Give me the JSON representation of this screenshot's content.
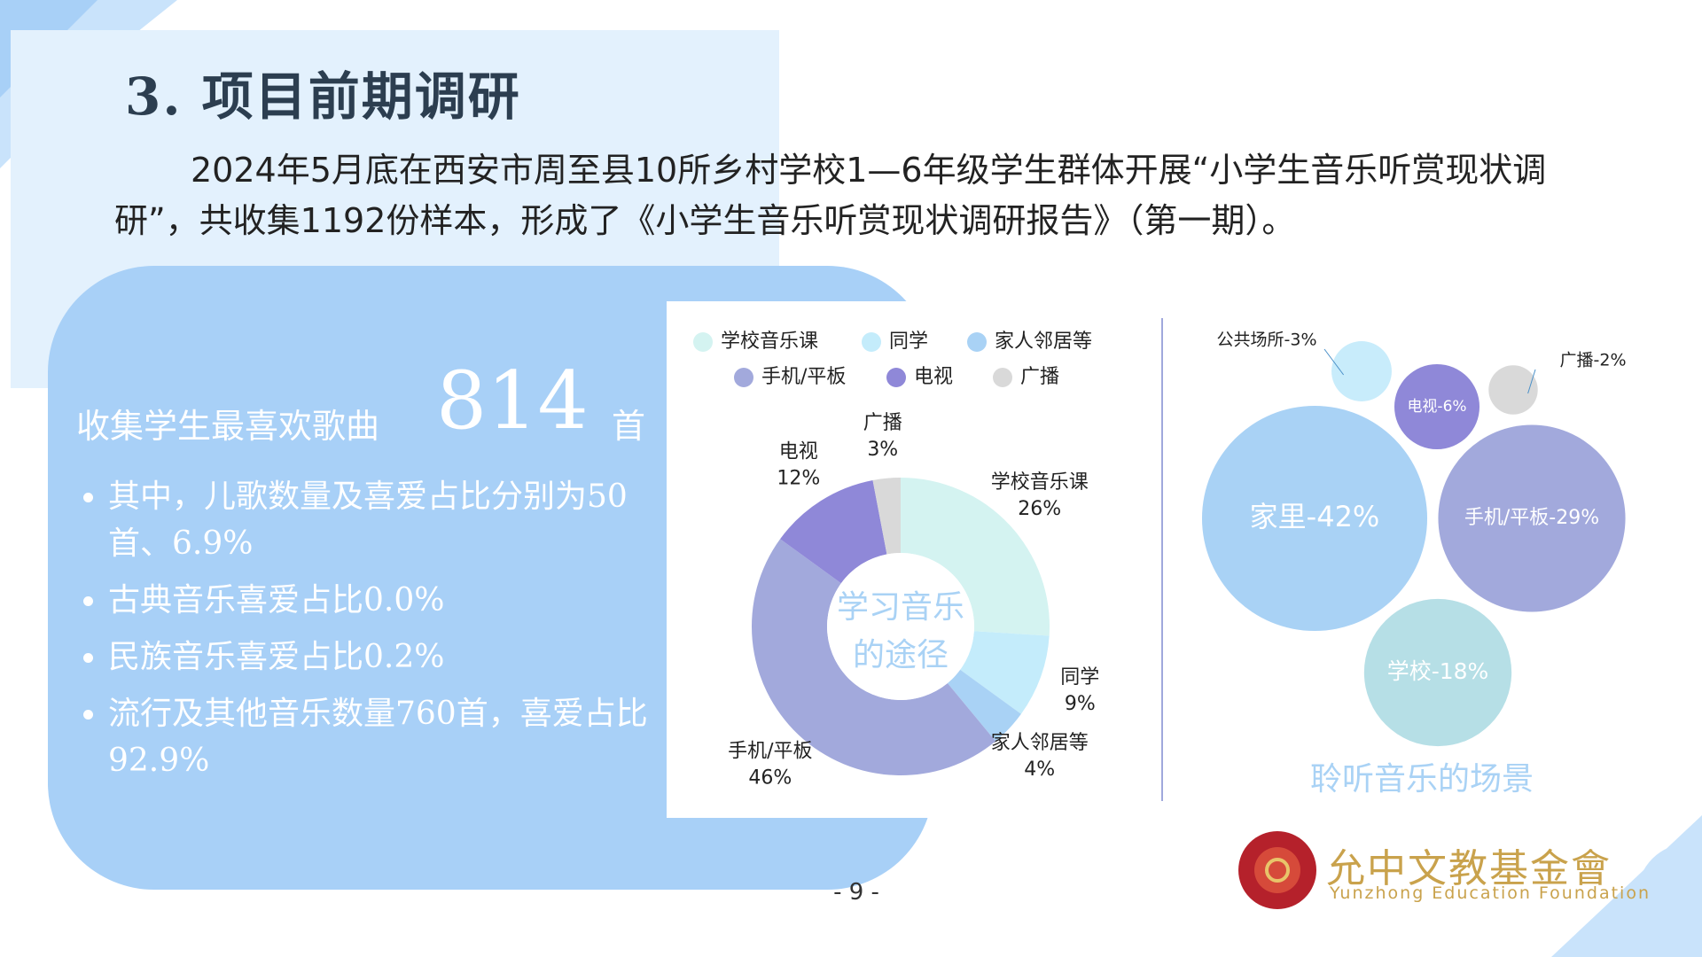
{
  "header": {
    "title": "3. 项目前期调研"
  },
  "intro": "2024年5月底在西安市周至县10所乡村学校1—6年级学生群体开展“小学生音乐听赏现状调研”，共收集1192份样本，形成了《小学生音乐听赏现状调研报告》（第一期）。",
  "summary": {
    "label": "收集学生最喜欢歌曲",
    "count": 814,
    "unit": "首",
    "bullets": [
      "其中，儿歌数量及喜爱占比分别为50首、6.9%",
      "古典音乐喜爱占比0.0%",
      "民族音乐喜爱占比0.2%",
      "流行及其他音乐数量760首，喜爱占比92.9%"
    ]
  },
  "chart_data": [
    {
      "type": "donut",
      "center_label": [
        "学习音乐",
        "的途径"
      ],
      "categories": [
        "学校音乐课",
        "同学",
        "家人邻居等",
        "手机/平板",
        "电视",
        "广播"
      ],
      "values": [
        26,
        9,
        4,
        46,
        12,
        3
      ],
      "value_labels": [
        "26%",
        "9%",
        "4%",
        "46%",
        "12%",
        "3%"
      ],
      "colors": [
        "#d4f3f1",
        "#c4ecfb",
        "#a9d2f5",
        "#a2a9dc",
        "#8f88d8",
        "#d9d9d9"
      ]
    },
    {
      "type": "bubble",
      "title": "聆听音乐的场景",
      "values": [
        3,
        6,
        2,
        42,
        29,
        18
      ],
      "value_labels": [
        "公共场所-3%",
        "电视-6%",
        "广播-2%",
        "家里-42%",
        "手机/平板-29%",
        "学校-18%"
      ],
      "colors": [
        "#c8ecfb",
        "#8f88d8",
        "#d9d9d9",
        "#a9d2f5",
        "#a2a9dc",
        "#b6dfe6"
      ]
    }
  ],
  "page_number": "- 9 -",
  "logo": {
    "name": "允中文教基金會",
    "subtitle": "Yunzhong Education Foundation"
  }
}
